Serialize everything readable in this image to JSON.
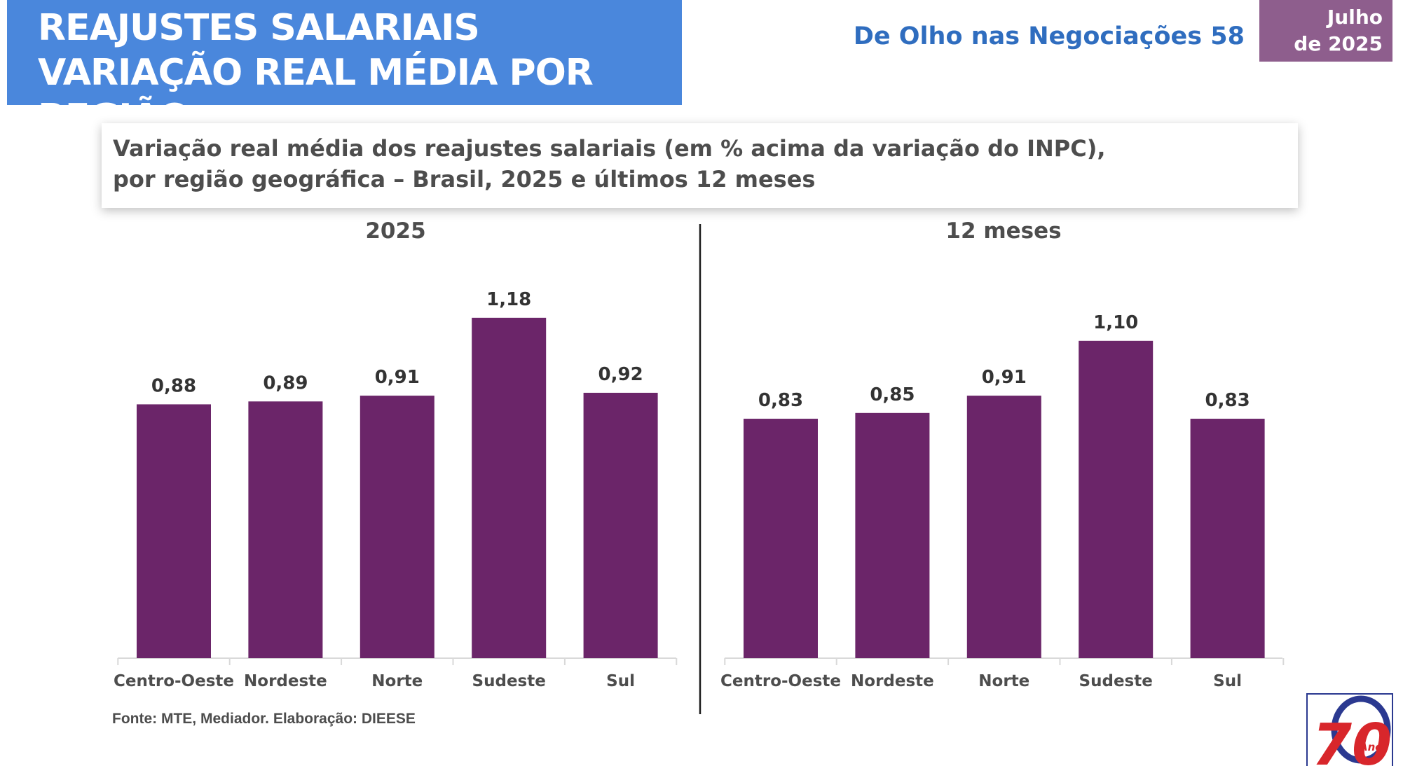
{
  "header": {
    "title_line1": "REAJUSTES SALARIAIS",
    "title_line2": "VARIAÇÃO REAL MÉDIA POR REGIÃO",
    "publication": "De Olho nas Negociações 58",
    "date_line1": "Julho",
    "date_line2": "de 2025"
  },
  "subtitle": {
    "line1": "Variação real média dos reajustes salariais (em % acima da variação do INPC),",
    "line2": "por região geográfica – Brasil, 2025 e últimos 12 meses"
  },
  "chart_data": [
    {
      "type": "bar",
      "title": "2025",
      "categories": [
        "Centro-Oeste",
        "Nordeste",
        "Norte",
        "Sudeste",
        "Sul"
      ],
      "values": [
        0.88,
        0.89,
        0.91,
        1.18,
        0.92
      ],
      "value_labels": [
        "0,88",
        "0,89",
        "0,91",
        "1,18",
        "0,92"
      ],
      "ylim": [
        0,
        1.2
      ],
      "grid": false,
      "bar_color": "#6b2569"
    },
    {
      "type": "bar",
      "title": "12 meses",
      "categories": [
        "Centro-Oeste",
        "Nordeste",
        "Norte",
        "Sudeste",
        "Sul"
      ],
      "values": [
        0.83,
        0.85,
        0.91,
        1.1,
        0.83
      ],
      "value_labels": [
        "0,83",
        "0,85",
        "0,91",
        "1,10",
        "0,83"
      ],
      "ylim": [
        0,
        1.2
      ],
      "grid": false,
      "bar_color": "#6b2569"
    }
  ],
  "source": "Fonte: MTE, Mediador. Elaboração: DIEESE",
  "logo": {
    "number": "70",
    "word": "Anos",
    "colors": {
      "number": "#d8262b",
      "ring": "#2b3990"
    }
  }
}
